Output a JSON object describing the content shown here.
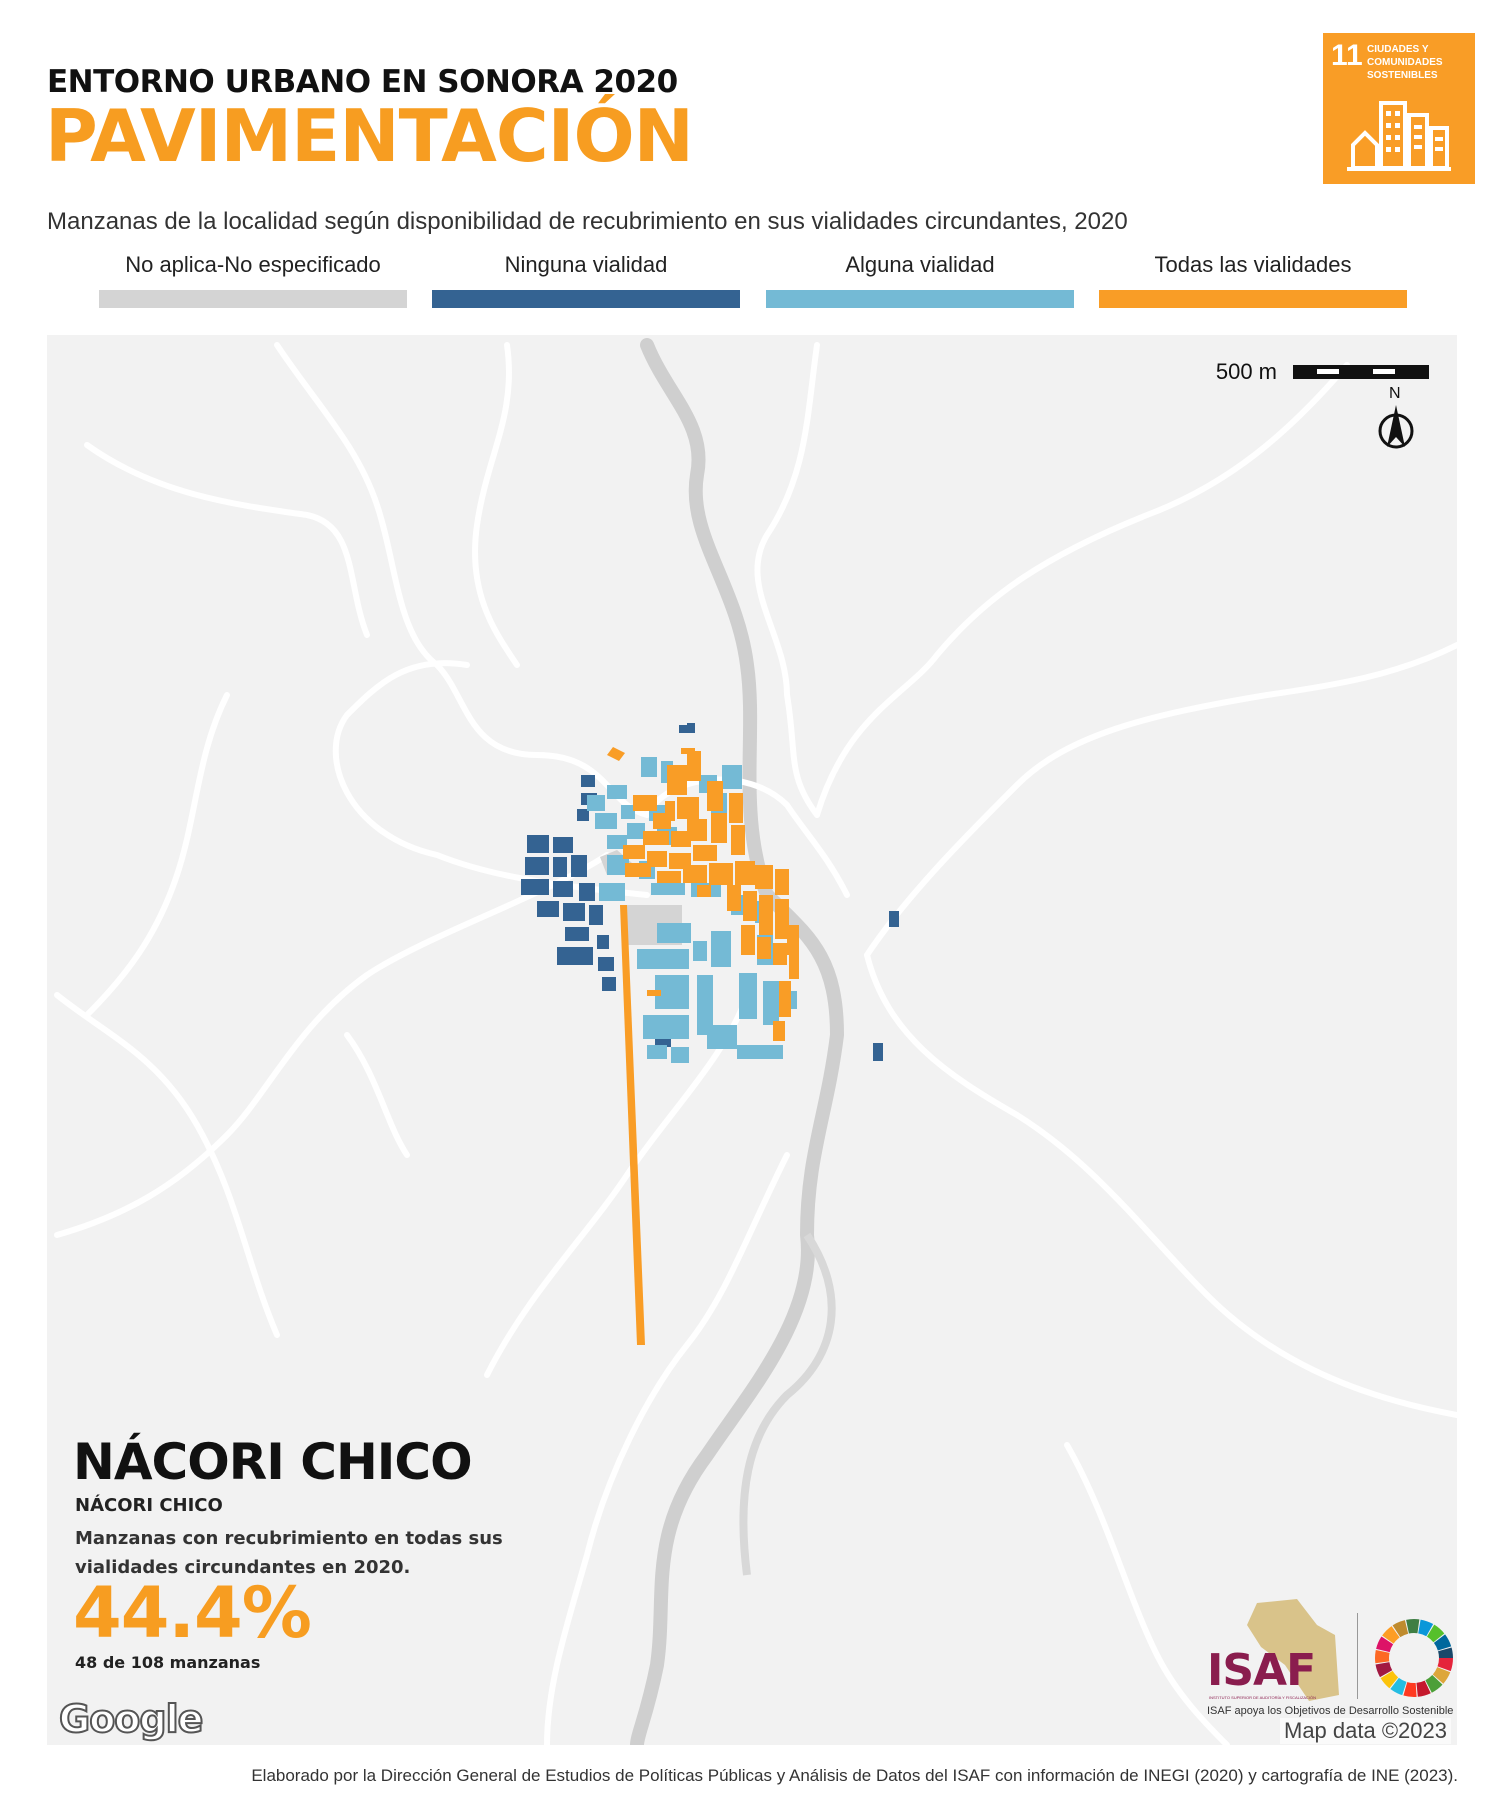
{
  "header": {
    "supertitle": "ENTORNO URBANO EN SONORA 2020",
    "title": "PAVIMENTACIÓN",
    "subtitle": "Manzanas de la localidad según disponibilidad de recubrimiento en sus vialidades circundantes, 2020"
  },
  "sdg_badge": {
    "number": "11",
    "text_line1": "CIUDADES Y",
    "text_line2": "COMUNIDADES",
    "text_line3": "SOSTENIBLES",
    "color": "#f99d26"
  },
  "legend": [
    {
      "label": "No aplica-No especificado",
      "color": "#d4d4d4"
    },
    {
      "label": "Ninguna vialidad",
      "color": "#346392"
    },
    {
      "label": "Alguna vialidad",
      "color": "#74bad5"
    },
    {
      "label": "Todas las vialidades",
      "color": "#f99d26"
    }
  ],
  "map": {
    "scale_label": "500 m",
    "north_label": "N",
    "google_label": "Google",
    "map_data": "Map data ©2023",
    "background": "#f2f2f2",
    "river_color": "#cfcfcf",
    "road_color": "#ffffff"
  },
  "summary": {
    "municipality": "NÁCORI CHICO",
    "locality": "NÁCORI CHICO",
    "description": "Manzanas con recubrimiento en todas sus vialidades circundantes en 2020.",
    "percent": "44.4%",
    "count": "48 de 108 manzanas"
  },
  "logos": {
    "isaf": "ISAF",
    "isaf_subtitle": "INSTITUTO SUPERIOR DE AUDITORÍA Y FISCALIZACIÓN",
    "caption": "ISAF apoya los Objetivos de Desarrollo Sostenible"
  },
  "footer": "Elaborado por la Dirección General de Estudios de Políticas Públicas y Análisis de Datos del ISAF con información de INEGI (2020) y cartografía de INE (2023)."
}
